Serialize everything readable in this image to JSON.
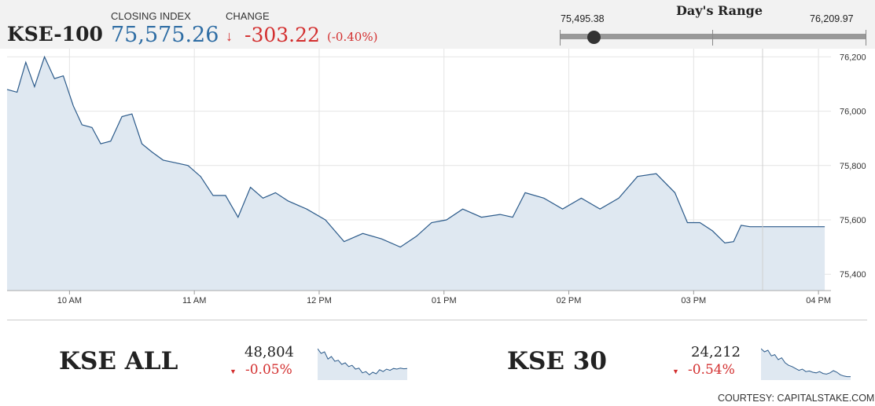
{
  "header": {
    "index_name": "KSE-100",
    "closing_label": "CLOSING INDEX",
    "closing_value": "75,575.26",
    "change_label": "CHANGE",
    "change_arrow": "↓",
    "change_value": "-303.22",
    "change_pct": "(-0.40%)",
    "down_color": "#d32f2f",
    "value_color": "#2e6da4"
  },
  "days_range": {
    "title": "Day's Range",
    "low": "75,495.38",
    "high": "76,209.97"
  },
  "chart_data": {
    "type": "area",
    "x_ticks": [
      "10 AM",
      "11 AM",
      "12 PM",
      "01 PM",
      "02 PM",
      "03 PM",
      "04 PM"
    ],
    "y_ticks": [
      "76,200",
      "76,000",
      "75,800",
      "75,600",
      "75,400"
    ],
    "ylim": [
      75340,
      76230
    ],
    "xlim": [
      9.5,
      16.1
    ],
    "grid": true,
    "line_color": "#2b5a8a",
    "fill_color": "#dfe8f1",
    "x": [
      9.5,
      9.58,
      9.65,
      9.72,
      9.8,
      9.88,
      9.95,
      10.03,
      10.1,
      10.18,
      10.25,
      10.33,
      10.42,
      10.5,
      10.58,
      10.66,
      10.75,
      10.85,
      10.95,
      11.05,
      11.15,
      11.25,
      11.35,
      11.45,
      11.55,
      11.65,
      11.75,
      11.9,
      12.05,
      12.2,
      12.35,
      12.5,
      12.65,
      12.78,
      12.9,
      13.02,
      13.15,
      13.3,
      13.45,
      13.55,
      13.65,
      13.8,
      13.95,
      14.1,
      14.25,
      14.4,
      14.55,
      14.7,
      14.85,
      14.95,
      15.05,
      15.15,
      15.25,
      15.32,
      15.38,
      15.45,
      15.5,
      15.6,
      15.8,
      16.0,
      16.05
    ],
    "y": [
      76080,
      76070,
      76180,
      76090,
      76200,
      76120,
      76130,
      76020,
      75950,
      75940,
      75880,
      75890,
      75980,
      75990,
      75880,
      75850,
      75820,
      75810,
      75800,
      75760,
      75690,
      75690,
      75610,
      75720,
      75680,
      75700,
      75670,
      75640,
      75600,
      75520,
      75550,
      75530,
      75500,
      75540,
      75590,
      75600,
      75640,
      75610,
      75620,
      75610,
      75700,
      75680,
      75640,
      75680,
      75640,
      75680,
      75760,
      75770,
      75700,
      75590,
      75590,
      75560,
      75515,
      75520,
      75580,
      75575,
      75575,
      75575,
      75575,
      75575,
      75575
    ]
  },
  "mini_indices": [
    {
      "name": "KSE ALL",
      "value": "48,804",
      "arrow": "▼",
      "change": "-0.05%",
      "spark": [
        0.95,
        0.8,
        0.85,
        0.62,
        0.7,
        0.55,
        0.58,
        0.45,
        0.5,
        0.38,
        0.42,
        0.3,
        0.33,
        0.18,
        0.22,
        0.12,
        0.2,
        0.15,
        0.28,
        0.22,
        0.3,
        0.26,
        0.32,
        0.3,
        0.33,
        0.31,
        0.32
      ]
    },
    {
      "name": "KSE 30",
      "value": "24,212",
      "arrow": "▼",
      "change": "-0.54%",
      "spark": [
        0.95,
        0.85,
        0.9,
        0.72,
        0.76,
        0.6,
        0.66,
        0.5,
        0.42,
        0.38,
        0.32,
        0.26,
        0.3,
        0.22,
        0.24,
        0.2,
        0.18,
        0.22,
        0.16,
        0.14,
        0.18,
        0.25,
        0.2,
        0.12,
        0.08,
        0.06,
        0.06
      ]
    }
  ],
  "footer": {
    "courtesy": "COURTESY: CAPITALSTAKE.COM"
  }
}
